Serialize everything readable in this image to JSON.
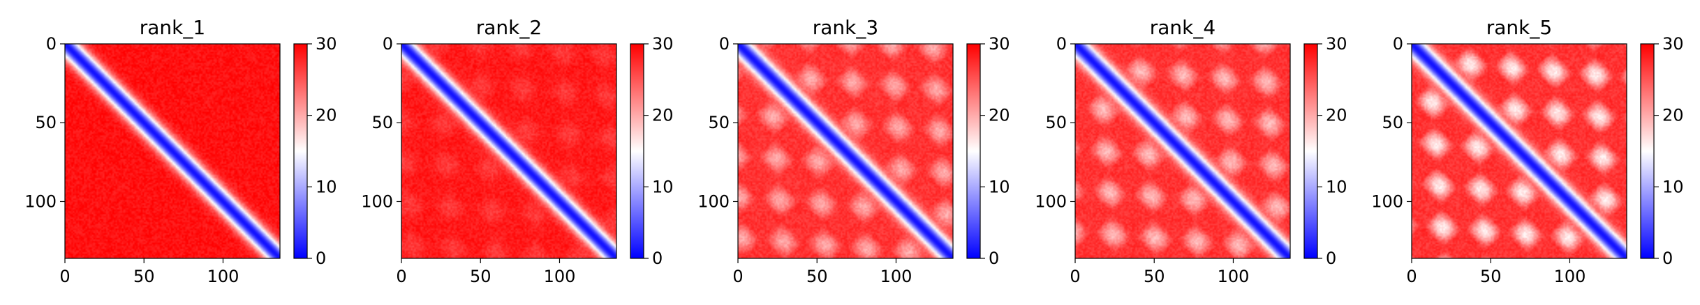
{
  "chart_data": [
    {
      "type": "heatmap",
      "title": "rank_1",
      "size": 136,
      "xticks": [
        0,
        50,
        100
      ],
      "yticks": [
        0,
        50,
        100
      ],
      "colorbar": {
        "min": 0,
        "max": 30,
        "ticks": [
          0,
          10,
          20,
          30
        ],
        "colormap": "bwr"
      },
      "pattern": {
        "diagonal_value": 1,
        "band_width": 6,
        "background": 29,
        "offdiag_modulation": 0
      }
    },
    {
      "type": "heatmap",
      "title": "rank_2",
      "size": 136,
      "xticks": [
        0,
        50,
        100
      ],
      "yticks": [
        0,
        50,
        100
      ],
      "colorbar": {
        "min": 0,
        "max": 30,
        "ticks": [
          0,
          10,
          20,
          30
        ],
        "colormap": "bwr"
      },
      "pattern": {
        "diagonal_value": 1,
        "band_width": 6,
        "background": 28.5,
        "offdiag_modulation": 2
      }
    },
    {
      "type": "heatmap",
      "title": "rank_3",
      "size": 136,
      "xticks": [
        0,
        50,
        100
      ],
      "yticks": [
        0,
        50,
        100
      ],
      "colorbar": {
        "min": 0,
        "max": 30,
        "ticks": [
          0,
          10,
          20,
          30
        ],
        "colormap": "bwr"
      },
      "pattern": {
        "diagonal_value": 1,
        "band_width": 6,
        "background": 27,
        "offdiag_modulation": 7
      }
    },
    {
      "type": "heatmap",
      "title": "rank_4",
      "size": 136,
      "xticks": [
        0,
        50,
        100
      ],
      "yticks": [
        0,
        50,
        100
      ],
      "colorbar": {
        "min": 0,
        "max": 30,
        "ticks": [
          0,
          10,
          20,
          30
        ],
        "colormap": "bwr"
      },
      "pattern": {
        "diagonal_value": 1,
        "band_width": 6,
        "background": 27,
        "offdiag_modulation": 8
      }
    },
    {
      "type": "heatmap",
      "title": "rank_5",
      "size": 136,
      "xticks": [
        0,
        50,
        100
      ],
      "yticks": [
        0,
        50,
        100
      ],
      "colorbar": {
        "min": 0,
        "max": 30,
        "ticks": [
          0,
          10,
          20,
          30
        ],
        "colormap": "bwr"
      },
      "pattern": {
        "diagonal_value": 1,
        "band_width": 6,
        "background": 27,
        "offdiag_modulation": 11
      }
    }
  ]
}
